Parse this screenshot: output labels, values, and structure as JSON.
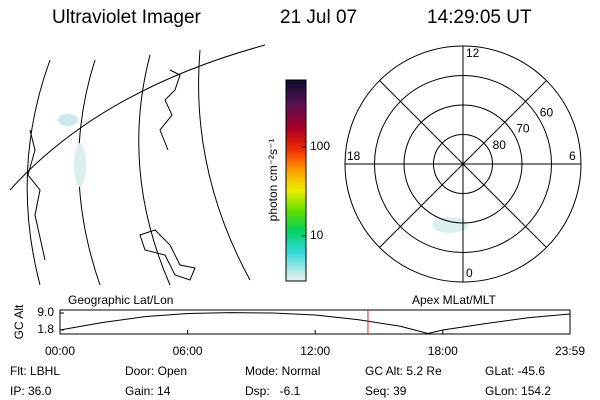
{
  "header": {
    "title": "Ultraviolet Imager",
    "date": "21 Jul 07",
    "time": "14:29:05 UT"
  },
  "map": {
    "label": "Geographic Lat/Lon"
  },
  "colorbar": {
    "label": "photon cm⁻²s⁻¹",
    "clim": [
      3.1,
      566
    ],
    "log": true,
    "ticks": [
      10,
      100
    ]
  },
  "polar": {
    "label": "Apex MLat/MLT",
    "rlim": [
      90,
      50
    ],
    "rings": [
      80,
      70,
      60
    ],
    "mlt_ticks": [
      12,
      18,
      6,
      0
    ]
  },
  "chart_data": {
    "type": "line",
    "ylabel": "GC Alt",
    "x": [
      0,
      2,
      4,
      6,
      8,
      10,
      12,
      14,
      16,
      17.3,
      18,
      20,
      22,
      23.98
    ],
    "series": [
      {
        "color": "#000000",
        "values": [
          1.8,
          5.0,
          7.5,
          8.8,
          9.2,
          9.0,
          8.2,
          6.2,
          3.4,
          0.3,
          1.8,
          4.5,
          7.0,
          8.6
        ]
      }
    ],
    "xlim": [
      0,
      23.98
    ],
    "xticks": [
      {
        "value": 0,
        "label": "00:00"
      },
      {
        "value": 6,
        "label": "06:00"
      },
      {
        "value": 12,
        "label": "12:00"
      },
      {
        "value": 18,
        "label": "18:00"
      },
      {
        "value": 23.98,
        "label": "23:59"
      }
    ],
    "ylim": [
      0.1,
      10.3
    ],
    "yticks": [
      {
        "value": 9,
        "label": "9.0"
      },
      {
        "value": 1.8,
        "label": "1.8"
      }
    ],
    "marker": 14.48,
    "marker_color": "#e0202a"
  },
  "info": [
    [
      "Flt: LBHL",
      "Door: Open",
      "Mode: Normal",
      "GC Alt: 5.2 Re",
      "GLat: -45.6"
    ],
    [
      "IP: 36.0",
      "Gain: 14",
      "Dsp:   -6.1",
      "Seq: 39",
      "GLon: 154.2"
    ]
  ]
}
